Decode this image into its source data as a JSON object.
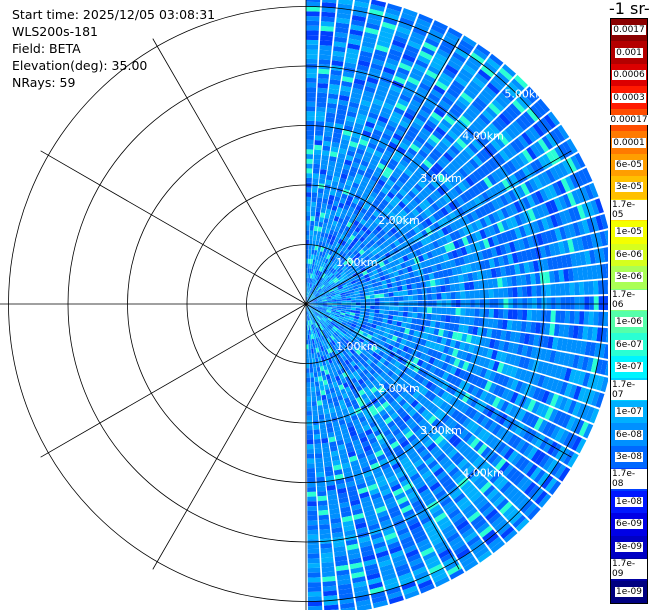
{
  "header": {
    "start_time": "Start time: 2025/12/05 03:08:31",
    "instrument": "WLS200s-181",
    "field": "Field: BETA",
    "elevation": "Elevation(deg): 35.00",
    "nrays": "NRays: 59"
  },
  "colorbar": {
    "unit_label": "-1 sr-",
    "labels": [
      "0.0017",
      "0.001",
      "0.0006",
      "0.0003",
      "0.00017",
      "0.0001",
      "6e-05",
      "3e-05",
      "1.7e-05",
      "1e-05",
      "6e-06",
      "3e-06",
      "1.7e-06",
      "1e-06",
      "6e-07",
      "3e-07",
      "1.7e-07",
      "1e-07",
      "6e-08",
      "3e-08",
      "1.7e-08",
      "1e-08",
      "6e-09",
      "3e-09",
      "1.7e-09",
      "1e-09"
    ],
    "colors": [
      "#8b0000",
      "#b40000",
      "#dc0000",
      "#ff1a00",
      "#ff4d00",
      "#ff7a00",
      "#ff9e00",
      "#ffc000",
      "#ffe000",
      "#f4ff00",
      "#d6ff1e",
      "#aaff55",
      "#80ff80",
      "#55ffaa",
      "#2affd4",
      "#00f4ff",
      "#00d0ff",
      "#00b0ff",
      "#0090ff",
      "#0068ff",
      "#0040ff",
      "#0018ff",
      "#0000e6",
      "#0000c4",
      "#0000a2",
      "#000080"
    ]
  },
  "chart_data": {
    "type": "heatmap",
    "title": "",
    "field": "BETA",
    "elevation_deg": 35.0,
    "nrays": 59,
    "ring_labels": [
      "1.00km",
      "2.00km",
      "3.00km",
      "4.00km",
      "5.00km"
    ],
    "range_km": [
      0,
      5.2
    ],
    "sector_deg": [
      0,
      180
    ],
    "color_scale": "log",
    "value_range": [
      1e-09,
      0.0017
    ],
    "typical_values": [
      {
        "range_km": "0-0.8",
        "beta": 1e-07
      },
      {
        "range_km": "0.8-2.5",
        "beta": 3e-08
      },
      {
        "range_km": "2.5-5.2",
        "beta": 3e-08
      }
    ]
  }
}
